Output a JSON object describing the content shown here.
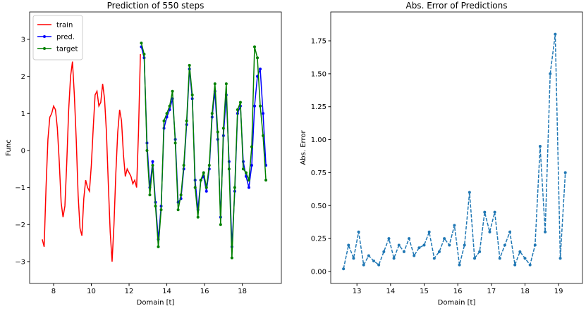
{
  "chart_data": [
    {
      "type": "line",
      "title": "Prediction of 550 steps",
      "xlabel": "Domain [t]",
      "ylabel": "Func",
      "xlim": [
        6.73,
        20.07
      ],
      "ylim": [
        -3.59,
        3.74
      ],
      "xticks": [
        8,
        10,
        12,
        14,
        16,
        18
      ],
      "yticks": [
        {
          "value": -3,
          "label": "−3"
        },
        {
          "value": -2,
          "label": "−2"
        },
        {
          "value": -1,
          "label": "−1"
        },
        0,
        1,
        2,
        3
      ],
      "legend": "upper left",
      "grid": false,
      "series": [
        {
          "name": "train",
          "color": "#ff0000",
          "marker": false,
          "linestyle": "solid",
          "x": [
            7.4,
            7.5,
            7.6,
            7.7,
            7.8,
            7.9,
            8.0,
            8.1,
            8.2,
            8.3,
            8.4,
            8.5,
            8.6,
            8.7,
            8.8,
            8.9,
            9.0,
            9.1,
            9.2,
            9.3,
            9.4,
            9.5,
            9.6,
            9.7,
            9.8,
            9.9,
            10.0,
            10.1,
            10.2,
            10.3,
            10.4,
            10.5,
            10.6,
            10.7,
            10.8,
            10.9,
            11.0,
            11.1,
            11.2,
            11.3,
            11.4,
            11.5,
            11.6,
            11.7,
            11.8,
            11.9,
            12.0,
            12.1,
            12.2,
            12.3,
            12.4,
            12.5,
            12.6
          ],
          "values": [
            -2.4,
            -2.6,
            -1.0,
            0.3,
            0.9,
            1.0,
            1.2,
            1.1,
            0.6,
            -0.3,
            -1.4,
            -1.8,
            -1.5,
            -0.3,
            1.1,
            2.0,
            2.4,
            1.5,
            0.3,
            -1.2,
            -2.1,
            -2.3,
            -1.3,
            -0.8,
            -1.0,
            -1.1,
            -0.4,
            0.6,
            1.5,
            1.6,
            1.2,
            1.3,
            1.8,
            1.4,
            0.5,
            -0.9,
            -2.2,
            -3.0,
            -2.0,
            -0.6,
            0.5,
            1.1,
            0.8,
            -0.1,
            -0.7,
            -0.5,
            -0.6,
            -0.7,
            -0.9,
            -0.8,
            -1.0,
            0.5,
            2.6
          ]
        },
        {
          "name": "pred.",
          "color": "#0000ff",
          "marker": true,
          "linestyle": "solid",
          "x": [
            12.65,
            12.8,
            12.95,
            13.1,
            13.25,
            13.4,
            13.55,
            13.7,
            13.85,
            14.0,
            14.15,
            14.3,
            14.45,
            14.6,
            14.75,
            14.9,
            15.05,
            15.2,
            15.35,
            15.5,
            15.65,
            15.8,
            15.95,
            16.1,
            16.25,
            16.4,
            16.55,
            16.7,
            16.85,
            17.0,
            17.15,
            17.3,
            17.45,
            17.6,
            17.75,
            17.9,
            18.05,
            18.2,
            18.35,
            18.5,
            18.65,
            18.8,
            18.95,
            19.1,
            19.25
          ],
          "values": [
            2.8,
            2.5,
            0.2,
            -1.0,
            -0.3,
            -1.4,
            -2.4,
            -1.5,
            0.6,
            0.9,
            1.1,
            1.4,
            0.3,
            -1.4,
            -1.3,
            -0.5,
            0.7,
            2.2,
            1.4,
            -0.8,
            -1.6,
            -0.8,
            -0.7,
            -1.1,
            -0.5,
            0.9,
            1.6,
            0.3,
            -1.8,
            0.4,
            1.5,
            -0.3,
            -2.6,
            -1.1,
            1.0,
            1.2,
            -0.3,
            -0.7,
            -1.0,
            -0.4,
            1.2,
            2.0,
            2.2,
            1.0,
            -0.4
          ]
        },
        {
          "name": "target",
          "color": "#008000",
          "marker": true,
          "linestyle": "solid",
          "x": [
            12.65,
            12.8,
            12.95,
            13.1,
            13.25,
            13.4,
            13.55,
            13.7,
            13.85,
            14.0,
            14.15,
            14.3,
            14.45,
            14.6,
            14.75,
            14.9,
            15.05,
            15.2,
            15.35,
            15.5,
            15.65,
            15.8,
            15.95,
            16.1,
            16.25,
            16.4,
            16.55,
            16.7,
            16.85,
            17.0,
            17.15,
            17.3,
            17.45,
            17.6,
            17.75,
            17.9,
            18.05,
            18.2,
            18.35,
            18.5,
            18.65,
            18.8,
            18.95,
            19.1,
            19.25
          ],
          "values": [
            2.9,
            2.6,
            0.0,
            -1.2,
            -0.4,
            -1.5,
            -2.6,
            -1.6,
            0.8,
            1.0,
            1.2,
            1.6,
            0.2,
            -1.6,
            -1.2,
            -0.4,
            0.8,
            2.3,
            1.5,
            -1.0,
            -1.8,
            -0.8,
            -0.6,
            -1.0,
            -0.4,
            1.0,
            1.8,
            0.5,
            -2.0,
            0.6,
            1.8,
            -0.5,
            -2.9,
            -1.0,
            1.1,
            1.3,
            -0.5,
            -0.6,
            -0.8,
            0.1,
            2.8,
            2.5,
            1.2,
            0.4,
            -0.8
          ]
        }
      ]
    },
    {
      "type": "line",
      "title": "Abs. Error of Predictions",
      "xlabel": "Domain [t]",
      "ylabel": "Abs. Error",
      "xlim": [
        12.22,
        19.71
      ],
      "ylim": [
        -0.091,
        1.969
      ],
      "xticks": [
        13,
        14,
        15,
        16,
        17,
        18,
        19
      ],
      "yticks": [
        {
          "value": 0,
          "label": "0.00"
        },
        {
          "value": 0.25,
          "label": "0.25"
        },
        {
          "value": 0.5,
          "label": "0.50"
        },
        {
          "value": 0.75,
          "label": "0.75"
        },
        {
          "value": 1.0,
          "label": "1.00"
        },
        {
          "value": 1.25,
          "label": "1.25"
        },
        {
          "value": 1.5,
          "label": "1.50"
        },
        {
          "value": 1.75,
          "label": "1.75"
        }
      ],
      "grid": false,
      "series": [
        {
          "color": "#1f77b4",
          "marker": true,
          "linestyle": "dashed",
          "x": [
            12.6,
            12.75,
            12.9,
            13.05,
            13.2,
            13.35,
            13.5,
            13.65,
            13.8,
            13.95,
            14.1,
            14.25,
            14.4,
            14.55,
            14.7,
            14.85,
            15.0,
            15.15,
            15.3,
            15.45,
            15.6,
            15.75,
            15.9,
            16.05,
            16.2,
            16.35,
            16.5,
            16.65,
            16.8,
            16.95,
            17.1,
            17.25,
            17.4,
            17.55,
            17.7,
            17.85,
            18.0,
            18.15,
            18.3,
            18.45,
            18.6,
            18.75,
            18.9,
            19.05,
            19.2
          ],
          "values": [
            0.02,
            0.2,
            0.1,
            0.3,
            0.05,
            0.12,
            0.08,
            0.05,
            0.15,
            0.25,
            0.1,
            0.2,
            0.15,
            0.25,
            0.12,
            0.18,
            0.2,
            0.3,
            0.1,
            0.15,
            0.25,
            0.2,
            0.35,
            0.05,
            0.2,
            0.6,
            0.1,
            0.15,
            0.45,
            0.3,
            0.45,
            0.1,
            0.2,
            0.3,
            0.05,
            0.15,
            0.1,
            0.05,
            0.2,
            0.95,
            0.3,
            1.5,
            1.8,
            0.1,
            0.75
          ]
        }
      ]
    }
  ]
}
